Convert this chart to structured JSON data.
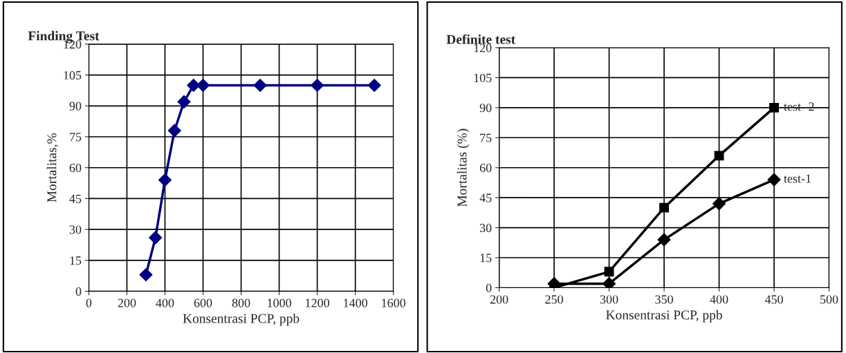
{
  "chart_data": [
    {
      "type": "line",
      "title": "Finding Test",
      "xlabel": "Konsentrasi PCP, ppb",
      "ylabel": "Mortalitas,%",
      "x": [
        300,
        350,
        400,
        450,
        500,
        550,
        600,
        900,
        1200,
        1500
      ],
      "series": [
        {
          "color": "#000080",
          "values": [
            8,
            26,
            54,
            78,
            92,
            100,
            100,
            100,
            100,
            100
          ],
          "marker": "diamond"
        }
      ],
      "xlim": [
        0,
        1600
      ],
      "xticks": [
        0,
        200,
        400,
        600,
        800,
        1000,
        1200,
        1400,
        1600
      ],
      "ylim": [
        0,
        120
      ],
      "yticks": [
        0,
        15,
        30,
        45,
        60,
        75,
        90,
        105,
        120
      ],
      "grid": true,
      "line_style": "solid"
    },
    {
      "type": "line",
      "title": "Definite test",
      "xlabel": "Konsentrasi PCP, ppb",
      "ylabel": "Mortalitas (%)",
      "x": [
        250,
        300,
        350,
        400,
        450
      ],
      "series": [
        {
          "name": "test -2",
          "color": "#000000",
          "values": [
            0,
            8,
            40,
            66,
            90
          ],
          "marker": "square"
        },
        {
          "name": "test-1",
          "color": "#000000",
          "values": [
            2,
            2,
            24,
            42,
            54
          ],
          "marker": "diamond"
        }
      ],
      "xlim": [
        200,
        500
      ],
      "xticks": [
        200,
        250,
        300,
        350,
        400,
        450,
        500
      ],
      "ylim": [
        0,
        120
      ],
      "yticks": [
        0,
        15,
        30,
        45,
        60,
        75,
        90,
        105,
        120
      ],
      "grid": true,
      "line_style": "solid"
    }
  ]
}
